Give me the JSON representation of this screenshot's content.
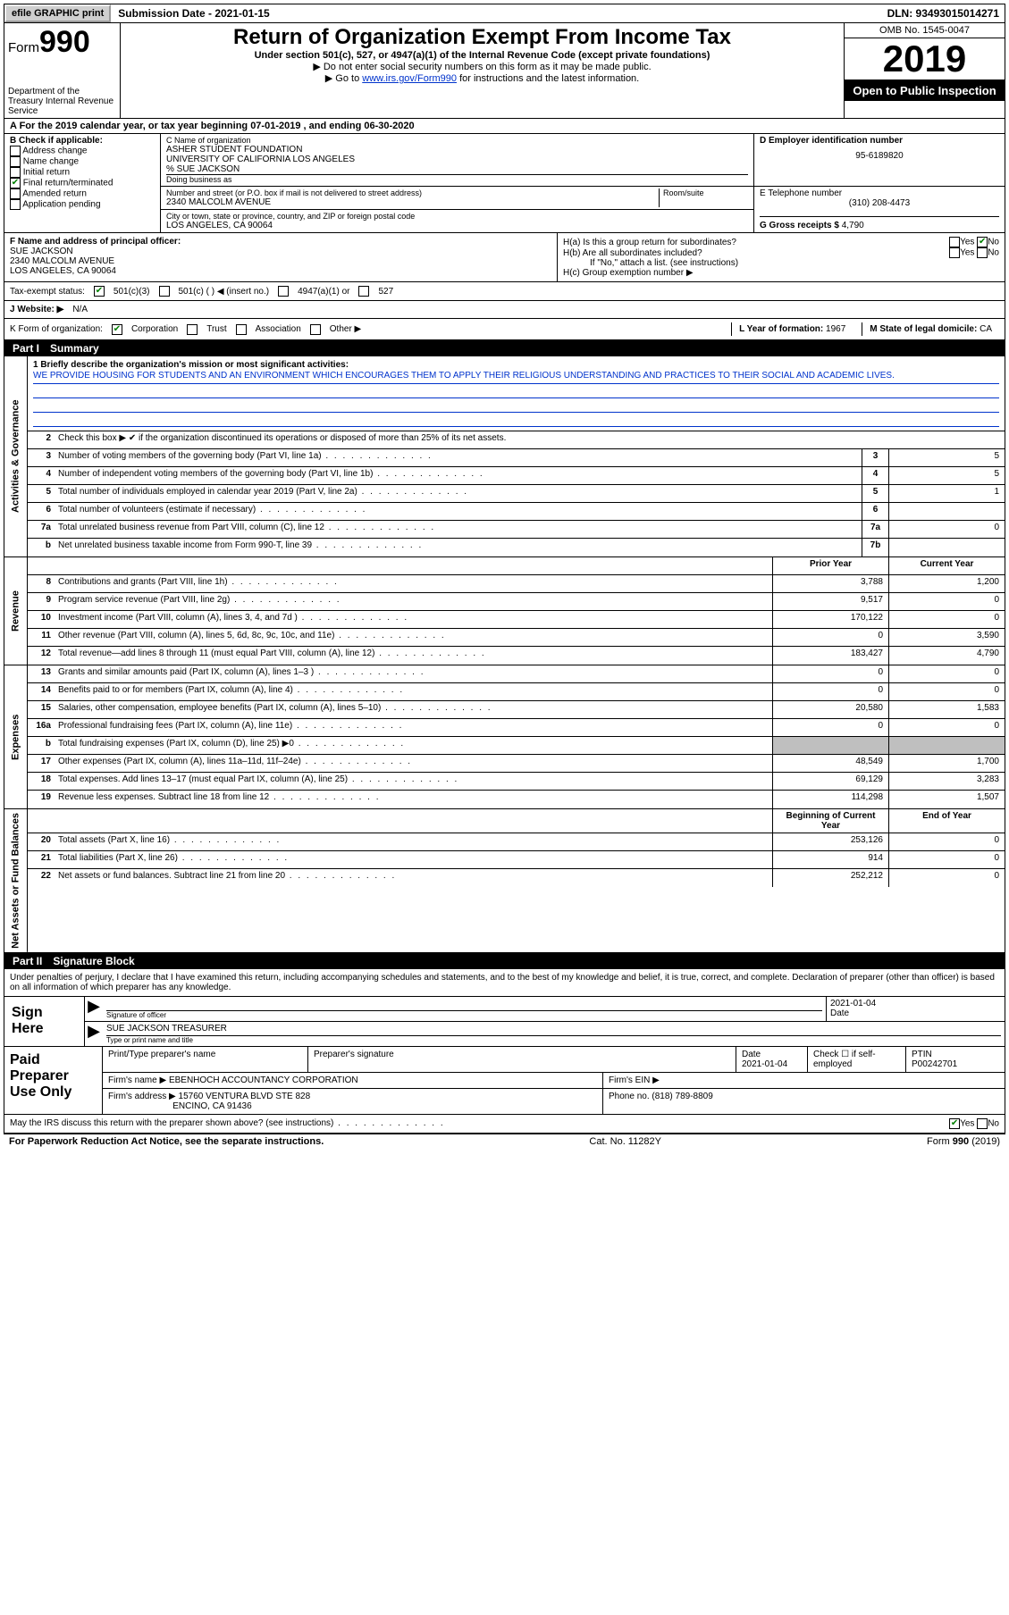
{
  "topbar": {
    "efile": "efile GRAPHIC print",
    "submission_label": "Submission Date - 2021-01-15",
    "dln": "DLN: 93493015014271"
  },
  "header": {
    "form_prefix": "Form",
    "form_number": "990",
    "dept": "Department of the Treasury\nInternal Revenue Service",
    "title": "Return of Organization Exempt From Income Tax",
    "subtitle": "Under section 501(c), 527, or 4947(a)(1) of the Internal Revenue Code (except private foundations)",
    "note1": "▶ Do not enter social security numbers on this form as it may be made public.",
    "note2_pre": "▶ Go to ",
    "note2_link": "www.irs.gov/Form990",
    "note2_post": " for instructions and the latest information.",
    "omb": "OMB No. 1545-0047",
    "year": "2019",
    "open": "Open to Public Inspection"
  },
  "period": {
    "text": "A For the 2019 calendar year, or tax year beginning 07-01-2019   , and ending 06-30-2020"
  },
  "B": {
    "label": "B Check if applicable:",
    "items": [
      "Address change",
      "Name change",
      "Initial return",
      "Final return/terminated",
      "Amended return",
      "Application pending"
    ],
    "checked_index": 3
  },
  "C": {
    "label": "C Name of organization",
    "name1": "ASHER STUDENT FOUNDATION",
    "name2": "UNIVERSITY OF CALIFORNIA LOS ANGELES",
    "care": "% SUE JACKSON",
    "dba_label": "Doing business as",
    "addr_label": "Number and street (or P.O. box if mail is not delivered to street address)",
    "room_label": "Room/suite",
    "street": "2340 MALCOLM AVENUE",
    "city_label": "City or town, state or province, country, and ZIP or foreign postal code",
    "city": "LOS ANGELES, CA  90064"
  },
  "D": {
    "label": "D Employer identification number",
    "ein": "95-6189820"
  },
  "E": {
    "label": "E Telephone number",
    "phone": "(310) 208-4473"
  },
  "G": {
    "label": "G Gross receipts $",
    "value": "4,790"
  },
  "F": {
    "label": "F  Name and address of principal officer:",
    "name": "SUE JACKSON",
    "street": "2340 MALCOLM AVENUE",
    "city": "LOS ANGELES, CA  90064"
  },
  "H": {
    "a": "H(a)  Is this a group return for subordinates?",
    "a_no_checked": true,
    "b": "H(b)  Are all subordinates included?",
    "b_note": "If \"No,\" attach a list. (see instructions)",
    "c": "H(c)  Group exemption number ▶"
  },
  "I": {
    "label": "Tax-exempt status:",
    "opt1": "501(c)(3)",
    "opt2": "501(c) (  ) ◀ (insert no.)",
    "opt3": "4947(a)(1) or",
    "opt4": "527",
    "checked": 0
  },
  "J": {
    "label": "J   Website: ▶",
    "value": "N/A"
  },
  "K": {
    "label": "K Form of organization:",
    "opts": [
      "Corporation",
      "Trust",
      "Association",
      "Other ▶"
    ],
    "checked": 0
  },
  "L": {
    "label": "L Year of formation:",
    "value": "1967"
  },
  "M": {
    "label": "M State of legal domicile:",
    "value": "CA"
  },
  "partI": {
    "num": "Part I",
    "title": "Summary"
  },
  "mission": {
    "label": "1  Briefly describe the organization's mission or most significant activities:",
    "text": "WE PROVIDE HOUSING FOR STUDENTS AND AN ENVIRONMENT WHICH ENCOURAGES THEM TO APPLY THEIR RELIGIOUS UNDERSTANDING AND PRACTICES TO THEIR SOCIAL AND ACADEMIC LIVES."
  },
  "line2": "Check this box ▶ ✔ if the organization discontinued its operations or disposed of more than 25% of its net assets.",
  "gov_rows": [
    {
      "n": "3",
      "d": "Number of voting members of the governing body (Part VI, line 1a)",
      "box": "3",
      "v": "5"
    },
    {
      "n": "4",
      "d": "Number of independent voting members of the governing body (Part VI, line 1b)",
      "box": "4",
      "v": "5"
    },
    {
      "n": "5",
      "d": "Total number of individuals employed in calendar year 2019 (Part V, line 2a)",
      "box": "5",
      "v": "1"
    },
    {
      "n": "6",
      "d": "Total number of volunteers (estimate if necessary)",
      "box": "6",
      "v": ""
    },
    {
      "n": "7a",
      "d": "Total unrelated business revenue from Part VIII, column (C), line 12",
      "box": "7a",
      "v": "0"
    },
    {
      "n": "b",
      "d": "Net unrelated business taxable income from Form 990-T, line 39",
      "box": "7b",
      "v": ""
    }
  ],
  "col_hdr": {
    "prior": "Prior Year",
    "current": "Current Year"
  },
  "rev_rows": [
    {
      "n": "8",
      "d": "Contributions and grants (Part VIII, line 1h)",
      "p": "3,788",
      "c": "1,200"
    },
    {
      "n": "9",
      "d": "Program service revenue (Part VIII, line 2g)",
      "p": "9,517",
      "c": "0"
    },
    {
      "n": "10",
      "d": "Investment income (Part VIII, column (A), lines 3, 4, and 7d )",
      "p": "170,122",
      "c": "0"
    },
    {
      "n": "11",
      "d": "Other revenue (Part VIII, column (A), lines 5, 6d, 8c, 9c, 10c, and 11e)",
      "p": "0",
      "c": "3,590"
    },
    {
      "n": "12",
      "d": "Total revenue—add lines 8 through 11 (must equal Part VIII, column (A), line 12)",
      "p": "183,427",
      "c": "4,790"
    }
  ],
  "exp_rows": [
    {
      "n": "13",
      "d": "Grants and similar amounts paid (Part IX, column (A), lines 1–3 )",
      "p": "0",
      "c": "0"
    },
    {
      "n": "14",
      "d": "Benefits paid to or for members (Part IX, column (A), line 4)",
      "p": "0",
      "c": "0"
    },
    {
      "n": "15",
      "d": "Salaries, other compensation, employee benefits (Part IX, column (A), lines 5–10)",
      "p": "20,580",
      "c": "1,583"
    },
    {
      "n": "16a",
      "d": "Professional fundraising fees (Part IX, column (A), line 11e)",
      "p": "0",
      "c": "0"
    },
    {
      "n": "b",
      "d": "Total fundraising expenses (Part IX, column (D), line 25) ▶0",
      "p": "",
      "c": "",
      "grey": true
    },
    {
      "n": "17",
      "d": "Other expenses (Part IX, column (A), lines 11a–11d, 11f–24e)",
      "p": "48,549",
      "c": "1,700"
    },
    {
      "n": "18",
      "d": "Total expenses. Add lines 13–17 (must equal Part IX, column (A), line 25)",
      "p": "69,129",
      "c": "3,283"
    },
    {
      "n": "19",
      "d": "Revenue less expenses. Subtract line 18 from line 12",
      "p": "114,298",
      "c": "1,507"
    }
  ],
  "net_hdr": {
    "prior": "Beginning of Current Year",
    "current": "End of Year"
  },
  "net_rows": [
    {
      "n": "20",
      "d": "Total assets (Part X, line 16)",
      "p": "253,126",
      "c": "0"
    },
    {
      "n": "21",
      "d": "Total liabilities (Part X, line 26)",
      "p": "914",
      "c": "0"
    },
    {
      "n": "22",
      "d": "Net assets or fund balances. Subtract line 21 from line 20",
      "p": "252,212",
      "c": "0"
    }
  ],
  "partII": {
    "num": "Part II",
    "title": "Signature Block"
  },
  "sig_decl": "Under penalties of perjury, I declare that I have examined this return, including accompanying schedules and statements, and to the best of my knowledge and belief, it is true, correct, and complete. Declaration of preparer (other than officer) is based on all information of which preparer has any knowledge.",
  "sign": {
    "label": "Sign Here",
    "sig_cap": "Signature of officer",
    "date": "2021-01-04",
    "date_cap": "Date",
    "name": "SUE JACKSON  TREASURER",
    "name_cap": "Type or print name and title"
  },
  "prep": {
    "label": "Paid Preparer Use Only",
    "h1": "Print/Type preparer's name",
    "h2": "Preparer's signature",
    "h3": "Date",
    "date": "2021-01-04",
    "h4": "Check ☐ if self-employed",
    "h5": "PTIN",
    "ptin": "P00242701",
    "firm_label": "Firm's name    ▶",
    "firm": "EBENHOCH ACCOUNTANCY CORPORATION",
    "ein_label": "Firm's EIN ▶",
    "addr_label": "Firm's address ▶",
    "addr1": "15760 VENTURA BLVD STE 828",
    "addr2": "ENCINO, CA  91436",
    "phone_label": "Phone no.",
    "phone": "(818) 789-8809"
  },
  "discuss": {
    "text": "May the IRS discuss this return with the preparer shown above? (see instructions)",
    "yes_checked": true
  },
  "footer": {
    "left": "For Paperwork Reduction Act Notice, see the separate instructions.",
    "mid": "Cat. No. 11282Y",
    "right": "Form 990 (2019)"
  },
  "vlabels": {
    "gov": "Activities & Governance",
    "rev": "Revenue",
    "exp": "Expenses",
    "net": "Net Assets or Fund Balances"
  }
}
